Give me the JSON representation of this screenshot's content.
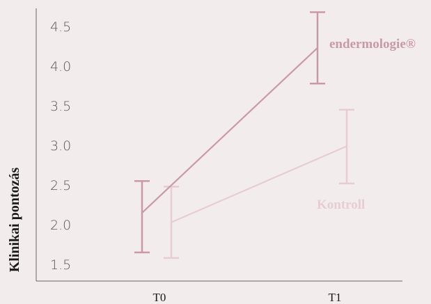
{
  "chart_data": {
    "type": "line",
    "categories": [
      "T0",
      "T1"
    ],
    "ylabel": "Klinikai pontozás",
    "xlabel": "",
    "ylim": [
      1.4,
      4.65
    ],
    "yticks": [
      "1.5",
      "2.0",
      "2.5",
      "3.0",
      "3.5",
      "4.0",
      "4.5"
    ],
    "grid": false,
    "series": [
      {
        "name": "endermologie®",
        "values": [
          2.15,
          4.23
        ],
        "error_low": [
          1.65,
          3.78
        ],
        "error_high": [
          2.55,
          4.68
        ],
        "color": "#c99aa6"
      },
      {
        "name": "Kontroll",
        "values": [
          2.03,
          2.99
        ],
        "error_low": [
          1.58,
          2.52
        ],
        "error_high": [
          2.48,
          3.45
        ],
        "color": "#e6cdd2"
      }
    ]
  }
}
